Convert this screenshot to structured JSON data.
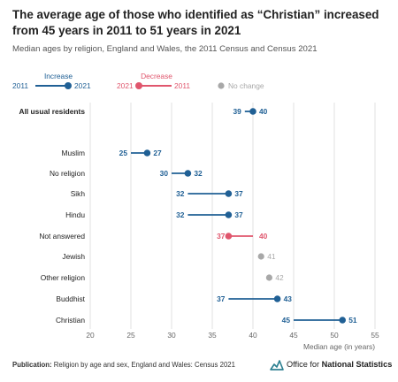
{
  "title": "The average age of those who identified as “Christian” increased from 45 years in 2011 to 51 years in 2021",
  "subtitle": "Median ages by religion, England and Wales, the 2011 Census and Census 2021",
  "legend": {
    "increase_label": "Increase",
    "increase_from": "2011",
    "increase_to": "2021",
    "decrease_label": "Decrease",
    "decrease_from": "2021",
    "decrease_to": "2011",
    "nochange_label": "No change"
  },
  "colors": {
    "increase": "#206095",
    "decrease": "#e0566d",
    "nochange": "#a8a8a8",
    "grid": "#d9d9d9",
    "logo_teal": "#2a7e8f"
  },
  "footer": {
    "publication_label": "Publication:",
    "publication_text": "Religion by age and sex, England and Wales: Census 2021",
    "logo_text_prefix": "Office for",
    "logo_text_bold": "National Statistics",
    "logo_icon": "ons-logo-icon"
  },
  "chart_data": {
    "type": "dumbbell",
    "xlabel": "Median age (in years)",
    "xlim": [
      20,
      55
    ],
    "xticks": [
      20,
      25,
      30,
      35,
      40,
      45,
      50,
      55
    ],
    "grid": true,
    "categories": [
      {
        "label": "All usual residents",
        "y2011": 39,
        "y2021": 40,
        "bold": true
      },
      {
        "label": "Muslim",
        "y2011": 25,
        "y2021": 27
      },
      {
        "label": "No religion",
        "y2011": 30,
        "y2021": 32
      },
      {
        "label": "Sikh",
        "y2011": 32,
        "y2021": 37
      },
      {
        "label": "Hindu",
        "y2011": 32,
        "y2021": 37
      },
      {
        "label": "Not answered",
        "y2011": 40,
        "y2021": 37
      },
      {
        "label": "Jewish",
        "y2011": 41,
        "y2021": 41
      },
      {
        "label": "Other religion",
        "y2011": 42,
        "y2021": 42
      },
      {
        "label": "Buddhist",
        "y2011": 37,
        "y2021": 43
      },
      {
        "label": "Christian",
        "y2011": 45,
        "y2021": 51
      }
    ]
  }
}
